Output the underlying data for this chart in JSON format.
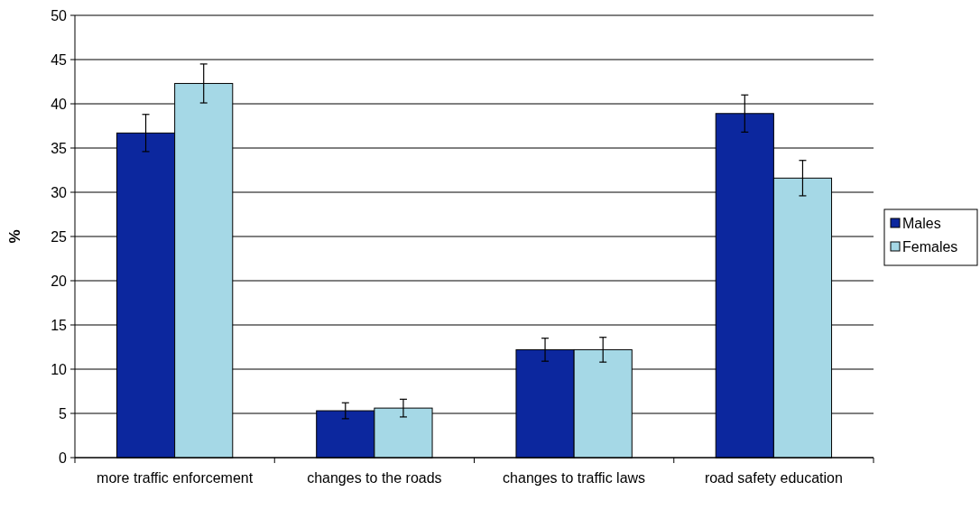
{
  "chart_data": {
    "type": "bar",
    "ylabel": "%",
    "categories": [
      "more traffic enforcement",
      "changes to the roads",
      "changes to traffic laws",
      "road safety education"
    ],
    "series": [
      {
        "name": "Males",
        "color": "#0c279e",
        "values": [
          36.7,
          5.3,
          12.2,
          38.9
        ],
        "errors": [
          2.1,
          0.9,
          1.3,
          2.1
        ]
      },
      {
        "name": "Females",
        "color": "#a5d8e6",
        "values": [
          42.3,
          5.6,
          12.2,
          31.6
        ],
        "errors": [
          2.2,
          1.0,
          1.4,
          2.0
        ]
      }
    ],
    "ylim": [
      0,
      50
    ],
    "yticks": [
      0,
      5,
      10,
      15,
      20,
      25,
      30,
      35,
      40,
      45,
      50
    ],
    "grid": "y",
    "legend": "right"
  }
}
